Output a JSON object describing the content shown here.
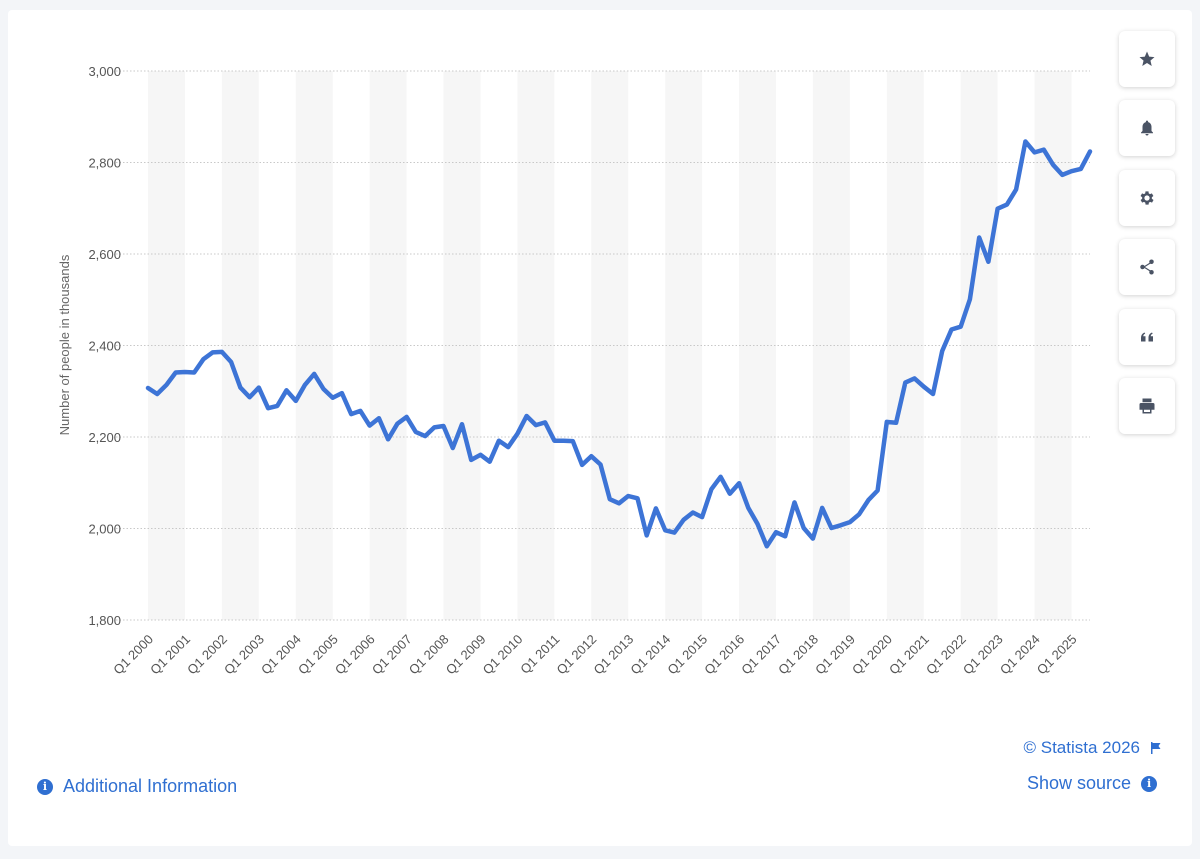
{
  "toolbar": {
    "buttons": [
      {
        "name": "favorite-button",
        "icon": "star-icon"
      },
      {
        "name": "notification-button",
        "icon": "bell-icon"
      },
      {
        "name": "settings-button",
        "icon": "gear-icon"
      },
      {
        "name": "share-button",
        "icon": "share-icon"
      },
      {
        "name": "cite-button",
        "icon": "quote-icon"
      },
      {
        "name": "print-button",
        "icon": "printer-icon"
      }
    ]
  },
  "footer": {
    "copyright": "© Statista 2026",
    "show_source": "Show source",
    "additional_info": "Additional Information"
  },
  "colors": {
    "line": "#3d74d6",
    "accent": "#2f6fd1",
    "band": "#f6f6f6",
    "grid": "#c8c8c8"
  },
  "chart_data": {
    "type": "line",
    "title": "",
    "xlabel": "",
    "ylabel": "Number of people in thousands",
    "ylim": [
      1800,
      3000
    ],
    "yticks": [
      1800,
      2000,
      2200,
      2400,
      2600,
      2800,
      3000
    ],
    "ytick_labels": [
      "1,800",
      "2,000",
      "2,200",
      "2,400",
      "2,600",
      "2,800",
      "3,000"
    ],
    "xtick_labels": [
      "Q1 2000",
      "Q1 2001",
      "Q1 2002",
      "Q1 2003",
      "Q1 2004",
      "Q1 2005",
      "Q1 2006",
      "Q1 2007",
      "Q1 2008",
      "Q1 2009",
      "Q1 2010",
      "Q1 2011",
      "Q1 2012",
      "Q1 2013",
      "Q1 2014",
      "Q1 2015",
      "Q1 2016",
      "Q1 2017",
      "Q1 2018",
      "Q1 2019",
      "Q1 2020",
      "Q1 2021",
      "Q1 2022",
      "Q1 2023",
      "Q1 2024",
      "Q1 2025"
    ],
    "x_start": "Q1 2000",
    "grid": "horizontal dotted",
    "series": [
      {
        "values": [
          2307,
          2294,
          2314,
          2341,
          2342,
          2341,
          2370,
          2385,
          2386,
          2364,
          2308,
          2287,
          2308,
          2263,
          2268,
          2302,
          2279,
          2314,
          2338,
          2305,
          2286,
          2296,
          2250,
          2257,
          2225,
          2241,
          2195,
          2229,
          2244,
          2211,
          2202,
          2221,
          2224,
          2176,
          2228,
          2150,
          2161,
          2146,
          2192,
          2178,
          2207,
          2246,
          2226,
          2232,
          2192,
          2192,
          2191,
          2139,
          2158,
          2140,
          2064,
          2055,
          2071,
          2066,
          1985,
          2044,
          1996,
          1991,
          2019,
          2035,
          2025,
          2086,
          2113,
          2076,
          2099,
          2045,
          2010,
          1961,
          1992,
          1983,
          2057,
          2001,
          1978,
          2045,
          2001,
          2007,
          2014,
          2031,
          2062,
          2083,
          2233,
          2231,
          2319,
          2328,
          2310,
          2294,
          2388,
          2435,
          2441,
          2501,
          2636,
          2583,
          2699,
          2708,
          2741,
          2846,
          2822,
          2828,
          2795,
          2773,
          2781,
          2786,
          2824
        ]
      }
    ]
  }
}
